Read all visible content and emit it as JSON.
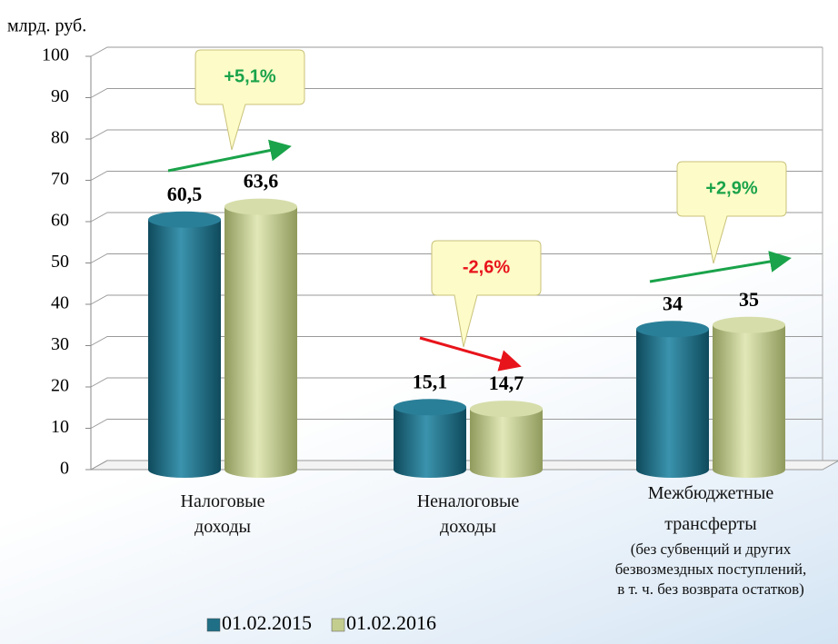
{
  "chart_data": {
    "type": "bar",
    "y_label": "млрд. руб.",
    "categories": [
      "Налоговые доходы",
      "Неналоговые доходы",
      "Межбюджетные трансферты"
    ],
    "category_notes": [
      null,
      null,
      "(без субвенций и других безвозмездных поступлений, в т. ч. без возврата остатков)"
    ],
    "series": [
      {
        "name": "01.02.2015",
        "color": "#1f6f86",
        "values": [
          60.5,
          15.1,
          34
        ],
        "value_labels": [
          "60,5",
          "15,1",
          "34"
        ]
      },
      {
        "name": "01.02.2016",
        "color": "#c3cd8e",
        "values": [
          63.6,
          14.7,
          35
        ],
        "value_labels": [
          "63,6",
          "14,7",
          "35"
        ]
      }
    ],
    "annotations": [
      {
        "text": "+5,1%",
        "color": "#1aa34a"
      },
      {
        "text": "-2,6%",
        "color": "#e8141b"
      },
      {
        "text": "+2,9%",
        "color": "#1aa34a"
      }
    ],
    "ylim": [
      0,
      100
    ],
    "yticks": [
      0,
      10,
      20,
      30,
      40,
      50,
      60,
      70,
      80,
      90,
      100
    ],
    "grid": true,
    "legend": "bottom"
  }
}
